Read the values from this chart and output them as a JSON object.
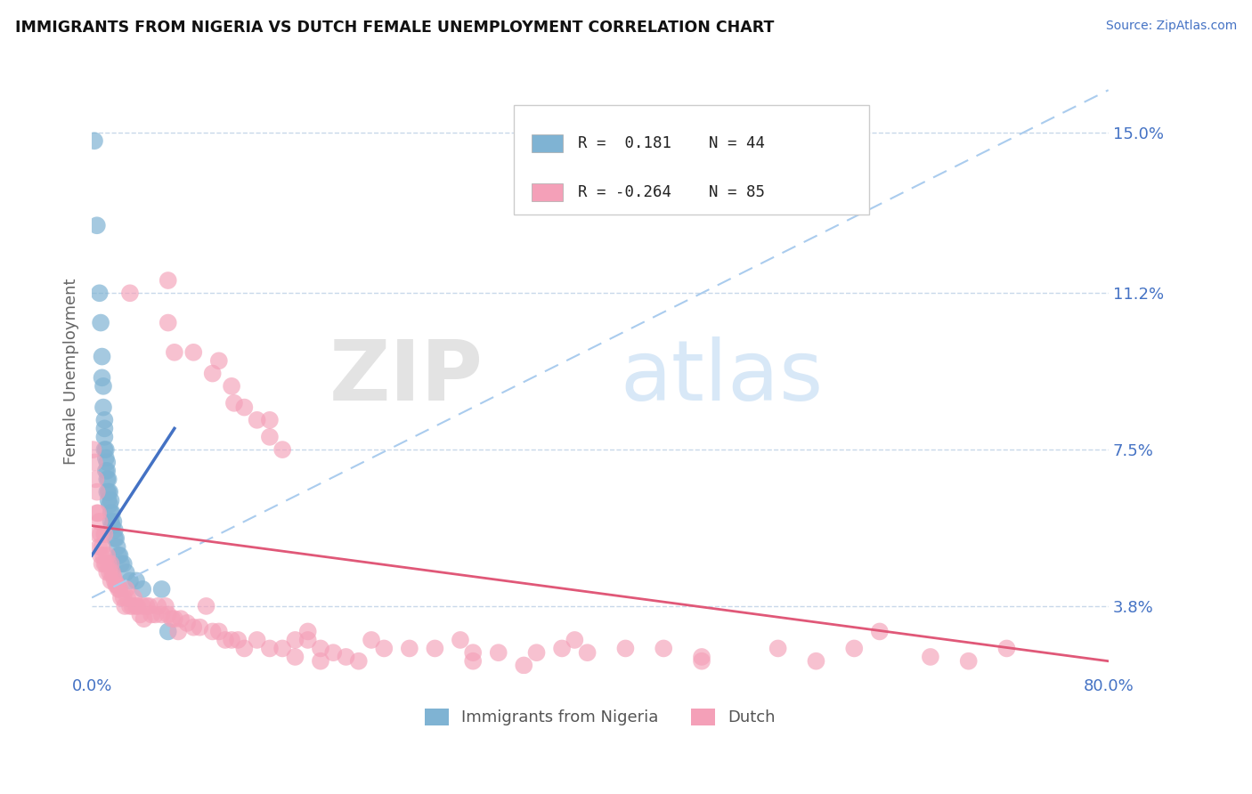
{
  "title": "IMMIGRANTS FROM NIGERIA VS DUTCH FEMALE UNEMPLOYMENT CORRELATION CHART",
  "source_text": "Source: ZipAtlas.com",
  "ylabel": "Female Unemployment",
  "y_tick_values": [
    0.038,
    0.075,
    0.112,
    0.15
  ],
  "xlim": [
    0.0,
    0.8
  ],
  "ylim": [
    0.022,
    0.165
  ],
  "color_blue": "#7fb3d3",
  "color_pink": "#f4a0b8",
  "color_trend_blue": "#4472c4",
  "color_trend_pink": "#e05878",
  "color_grid": "#c8d8ea",
  "color_axis_labels": "#4472c4",
  "blue_x": [
    0.002,
    0.004,
    0.006,
    0.007,
    0.008,
    0.008,
    0.009,
    0.009,
    0.01,
    0.01,
    0.01,
    0.01,
    0.011,
    0.011,
    0.011,
    0.012,
    0.012,
    0.012,
    0.012,
    0.013,
    0.013,
    0.013,
    0.014,
    0.014,
    0.015,
    0.015,
    0.015,
    0.016,
    0.016,
    0.017,
    0.018,
    0.018,
    0.019,
    0.02,
    0.021,
    0.022,
    0.023,
    0.025,
    0.027,
    0.03,
    0.035,
    0.04,
    0.055,
    0.06
  ],
  "blue_y": [
    0.148,
    0.128,
    0.112,
    0.105,
    0.097,
    0.092,
    0.09,
    0.085,
    0.082,
    0.08,
    0.078,
    0.075,
    0.075,
    0.073,
    0.07,
    0.072,
    0.07,
    0.068,
    0.065,
    0.068,
    0.065,
    0.063,
    0.065,
    0.062,
    0.063,
    0.06,
    0.058,
    0.06,
    0.057,
    0.058,
    0.056,
    0.054,
    0.054,
    0.052,
    0.05,
    0.05,
    0.048,
    0.048,
    0.046,
    0.044,
    0.044,
    0.042,
    0.042,
    0.032
  ],
  "pink_x": [
    0.001,
    0.002,
    0.003,
    0.004,
    0.004,
    0.005,
    0.005,
    0.006,
    0.006,
    0.007,
    0.007,
    0.008,
    0.008,
    0.009,
    0.01,
    0.01,
    0.011,
    0.012,
    0.012,
    0.013,
    0.014,
    0.015,
    0.015,
    0.016,
    0.017,
    0.018,
    0.019,
    0.02,
    0.021,
    0.022,
    0.023,
    0.025,
    0.026,
    0.027,
    0.028,
    0.03,
    0.032,
    0.033,
    0.035,
    0.036,
    0.038,
    0.04,
    0.041,
    0.043,
    0.045,
    0.047,
    0.05,
    0.052,
    0.055,
    0.058,
    0.06,
    0.063,
    0.065,
    0.068,
    0.07,
    0.075,
    0.08,
    0.085,
    0.09,
    0.095,
    0.1,
    0.105,
    0.11,
    0.115,
    0.12,
    0.13,
    0.14,
    0.15,
    0.16,
    0.17,
    0.18,
    0.19,
    0.2,
    0.21,
    0.22,
    0.23,
    0.25,
    0.27,
    0.3,
    0.32,
    0.35,
    0.38,
    0.42,
    0.48,
    0.54,
    0.6,
    0.66
  ],
  "pink_y": [
    0.075,
    0.072,
    0.068,
    0.065,
    0.06,
    0.06,
    0.055,
    0.058,
    0.052,
    0.055,
    0.05,
    0.052,
    0.048,
    0.05,
    0.055,
    0.048,
    0.048,
    0.05,
    0.046,
    0.048,
    0.046,
    0.048,
    0.044,
    0.046,
    0.045,
    0.044,
    0.043,
    0.043,
    0.042,
    0.042,
    0.04,
    0.04,
    0.038,
    0.042,
    0.04,
    0.038,
    0.038,
    0.04,
    0.038,
    0.038,
    0.036,
    0.038,
    0.035,
    0.038,
    0.038,
    0.036,
    0.036,
    0.038,
    0.036,
    0.038,
    0.036,
    0.035,
    0.035,
    0.032,
    0.035,
    0.034,
    0.033,
    0.033,
    0.038,
    0.032,
    0.032,
    0.03,
    0.03,
    0.03,
    0.028,
    0.03,
    0.028,
    0.028,
    0.026,
    0.03,
    0.028,
    0.027,
    0.026,
    0.025,
    0.03,
    0.028,
    0.028,
    0.028,
    0.027,
    0.027,
    0.027,
    0.03,
    0.028,
    0.026,
    0.028,
    0.028,
    0.026
  ],
  "pink_x_extra": [
    0.03,
    0.06,
    0.06,
    0.065,
    0.08,
    0.095,
    0.1,
    0.11,
    0.112,
    0.12,
    0.13,
    0.14,
    0.14,
    0.15,
    0.16,
    0.17,
    0.18,
    0.29,
    0.3,
    0.34,
    0.37,
    0.39,
    0.45,
    0.48,
    0.57,
    0.62,
    0.69,
    0.72
  ],
  "pink_y_extra": [
    0.112,
    0.115,
    0.105,
    0.098,
    0.098,
    0.093,
    0.096,
    0.09,
    0.086,
    0.085,
    0.082,
    0.082,
    0.078,
    0.075,
    0.03,
    0.032,
    0.025,
    0.03,
    0.025,
    0.024,
    0.028,
    0.027,
    0.028,
    0.025,
    0.025,
    0.032,
    0.025,
    0.028
  ]
}
